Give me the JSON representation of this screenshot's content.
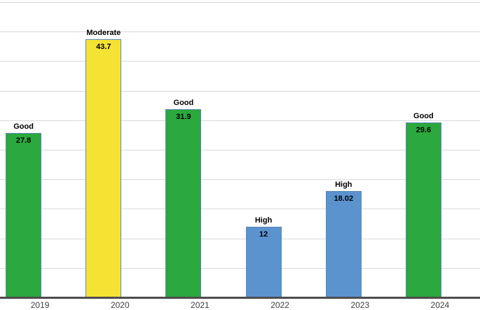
{
  "chart_data": {
    "type": "bar",
    "title": "",
    "xlabel": "",
    "ylabel": "",
    "categories": [
      "2019",
      "2020",
      "2021",
      "2022",
      "2023",
      "2024"
    ],
    "bars": [
      {
        "category": "2019",
        "rating": "Good",
        "value": 27.8,
        "value_label": "27.8",
        "color_key": "good"
      },
      {
        "category": "2020",
        "rating": "Moderate",
        "value": 43.7,
        "value_label": "43.7",
        "color_key": "moderate"
      },
      {
        "category": "2021",
        "rating": "Good",
        "value": 31.9,
        "value_label": "31.9",
        "color_key": "good"
      },
      {
        "category": "2022",
        "rating": "High",
        "value": 12,
        "value_label": "12",
        "color_key": "high"
      },
      {
        "category": "2023",
        "rating": "High",
        "value": 18.02,
        "value_label": "18.02",
        "color_key": "high"
      },
      {
        "category": "2024",
        "rating": "Good",
        "value": 29.6,
        "value_label": "29.6",
        "color_key": "good"
      }
    ],
    "ylim": [
      0,
      50
    ],
    "gridline_step": 5,
    "grid": true,
    "legend": "none",
    "y_tick_labels_visible": false,
    "colors": {
      "good": "#2BA83E",
      "moderate": "#F5E334",
      "high": "#5B93CE",
      "bar_border": "#5A89B5",
      "gridline": "#D9D9D9",
      "axis_line": "#4D4D4D",
      "tick_label": "#404040",
      "data_label": "#000000"
    }
  }
}
